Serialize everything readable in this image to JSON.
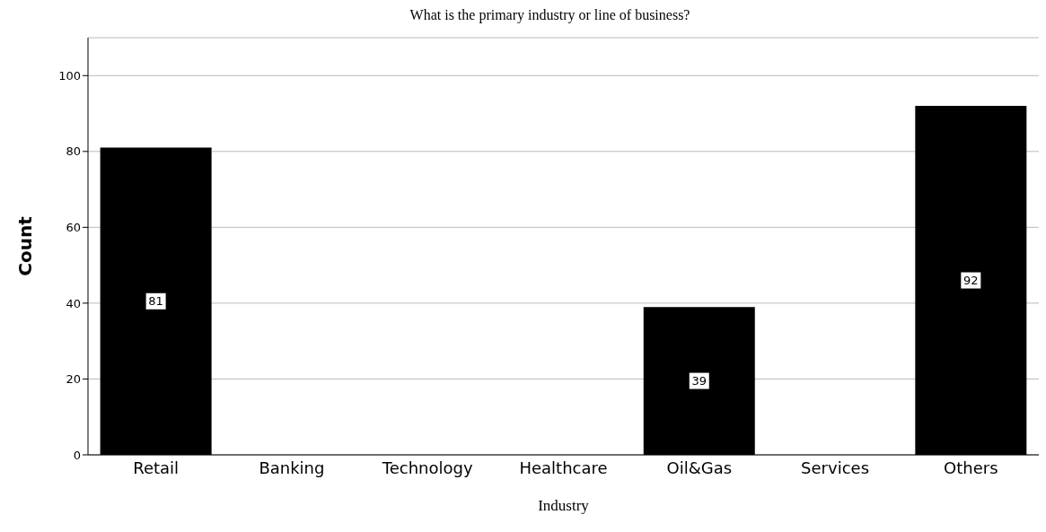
{
  "chart_data": {
    "type": "bar",
    "title": "What is the primary industry or line of business?",
    "xlabel": "Industry",
    "ylabel": "Count",
    "categories": [
      "Retail",
      "Banking",
      "Technology",
      "Healthcare",
      "Oil&Gas",
      "Services",
      "Others"
    ],
    "values": [
      81,
      null,
      null,
      null,
      39,
      null,
      92
    ],
    "color": "#000000",
    "ylim": [
      0,
      110
    ],
    "yticks": [
      0,
      20,
      40,
      60,
      80,
      100
    ],
    "grid": "y",
    "data_labels": true
  }
}
